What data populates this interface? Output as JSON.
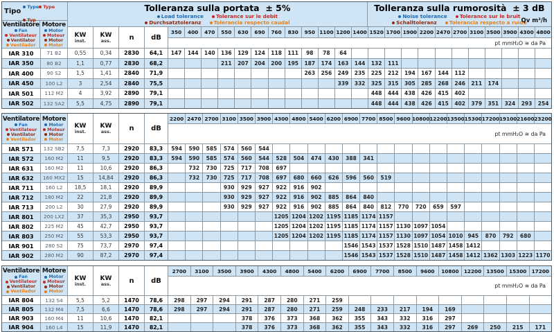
{
  "colors": {
    "blue": "#1e6ab0",
    "red": "#c5291f",
    "maroon": "#8f2a0e",
    "orange": "#e2801e",
    "row_blue": "#cfe5f6"
  },
  "tipo": {
    "label": "Tipo",
    "items": [
      {
        "text": "Type",
        "color": "blue"
      },
      {
        "text": "Type",
        "color": "red"
      },
      {
        "text": "Typ",
        "color": "maroon"
      }
    ]
  },
  "fan_legend": {
    "label": "Ventilatore",
    "items": [
      {
        "text": "Fan",
        "color": "blue"
      },
      {
        "text": "Ventilateur",
        "color": "red"
      },
      {
        "text": "Ventilator",
        "color": "maroon"
      },
      {
        "text": "Ventilador",
        "color": "orange"
      }
    ]
  },
  "motor_legend": {
    "label": "Motore",
    "items": [
      {
        "text": "Motor",
        "color": "blue"
      },
      {
        "text": "Moteur",
        "color": "red"
      },
      {
        "text": "Motor",
        "color": "maroon"
      },
      {
        "text": "Motor",
        "color": "orange"
      }
    ]
  },
  "banner": {
    "portata_title": "Tolleranza sulla portata",
    "portata_tol": "± 5%",
    "portata_legend": [
      [
        {
          "text": "Load tolerance",
          "color": "blue"
        },
        {
          "text": "Tolerance sur le debit",
          "color": "red"
        }
      ],
      [
        {
          "text": "Durchsatztoleranz",
          "color": "maroon"
        },
        {
          "text": "Tolerancia respecto caudal",
          "color": "orange"
        }
      ]
    ],
    "rumorosita_title": "Tolleranza sulla rumorosità",
    "rumorosita_tol": "± 3 dB",
    "rumorosita_legend": [
      [
        {
          "text": "Noise tolerance",
          "color": "blue"
        },
        {
          "text": "Tolerance sur le bruit",
          "color": "red"
        }
      ],
      [
        {
          "text": "Schalltoleranz",
          "color": "maroon"
        },
        {
          "text": "Tolerancia respecto a ruido",
          "color": "orange"
        }
      ]
    ],
    "qv_label": "Qv m³/h"
  },
  "col_labels": {
    "kw": "KW",
    "inst": "inst.",
    "ass": "ass.",
    "n": "n",
    "db": "dB",
    "pt": "pt mmH₂O ≅ da Pa"
  },
  "tables": [
    {
      "flows": [
        "350",
        "400",
        "470",
        "550",
        "630",
        "690",
        "760",
        "830",
        "950",
        "1100",
        "1200",
        "1400",
        "1520",
        "1700",
        "1900",
        "2200",
        "2470",
        "2700",
        "3100",
        "3500",
        "3900",
        "4300",
        "4800"
      ],
      "rows": [
        {
          "name": "IAR 310",
          "motor": "71 B2",
          "kw_inst": "0,55",
          "kw_ass": "0,34",
          "n": "2830",
          "db": "64,1",
          "values": [
            "147",
            "144",
            "140",
            "136",
            "129",
            "124",
            "118",
            "111",
            "98",
            "78",
            "64",
            "",
            "",
            "",
            "",
            "",
            "",
            "",
            "",
            "",
            "",
            "",
            ""
          ]
        },
        {
          "name": "IAR 350",
          "motor": "80 B2",
          "kw_inst": "1,1",
          "kw_ass": "0,77",
          "n": "2830",
          "db": "68,2",
          "values": [
            "",
            "",
            "",
            "211",
            "207",
            "204",
            "200",
            "195",
            "187",
            "174",
            "163",
            "144",
            "132",
            "111",
            "",
            "",
            "",
            "",
            "",
            "",
            "",
            "",
            ""
          ]
        },
        {
          "name": "IAR 400",
          "motor": "90 S2",
          "kw_inst": "1,5",
          "kw_ass": "1,41",
          "n": "2840",
          "db": "71,9",
          "values": [
            "",
            "",
            "",
            "",
            "",
            "",
            "",
            "",
            "263",
            "256",
            "249",
            "235",
            "225",
            "212",
            "194",
            "167",
            "144",
            "112",
            "",
            "",
            "",
            "",
            ""
          ]
        },
        {
          "name": "IAR 450",
          "motor": "100 L2",
          "kw_inst": "3",
          "kw_ass": "2,54",
          "n": "2840",
          "db": "75,5",
          "values": [
            "",
            "",
            "",
            "",
            "",
            "",
            "",
            "",
            "",
            "",
            "339",
            "332",
            "325",
            "315",
            "305",
            "285",
            "268",
            "246",
            "211",
            "174",
            "",
            "",
            ""
          ]
        },
        {
          "name": "IAR 501",
          "motor": "112 M2",
          "kw_inst": "4",
          "kw_ass": "3,92",
          "n": "2890",
          "db": "79,1",
          "values": [
            "",
            "",
            "",
            "",
            "",
            "",
            "",
            "",
            "",
            "",
            "",
            "",
            "448",
            "444",
            "438",
            "426",
            "415",
            "402",
            "",
            "",
            "",
            "",
            ""
          ]
        },
        {
          "name": "IAR 502",
          "motor": "132 SA2",
          "kw_inst": "5,5",
          "kw_ass": "4,75",
          "n": "2890",
          "db": "79,1",
          "values": [
            "",
            "",
            "",
            "",
            "",
            "",
            "",
            "",
            "",
            "",
            "",
            "",
            "448",
            "444",
            "438",
            "426",
            "415",
            "402",
            "379",
            "351",
            "324",
            "293",
            "254"
          ]
        }
      ]
    },
    {
      "flows": [
        "2200",
        "2470",
        "2700",
        "3100",
        "3500",
        "3900",
        "4300",
        "4800",
        "5400",
        "6200",
        "6900",
        "7700",
        "8500",
        "9600",
        "10800",
        "12200",
        "13500",
        "15300",
        "17200",
        "19100",
        "21600",
        "23200"
      ],
      "rows": [
        {
          "name": "IAR 571",
          "motor": "132 SB2",
          "kw_inst": "7,5",
          "kw_ass": "7,3",
          "n": "2920",
          "db": "83,3",
          "values": [
            "594",
            "590",
            "585",
            "574",
            "560",
            "544",
            "",
            "",
            "",
            "",
            "",
            "",
            "",
            "",
            "",
            "",
            "",
            "",
            "",
            "",
            "",
            ""
          ]
        },
        {
          "name": "IAR 572",
          "motor": "160 M2",
          "kw_inst": "11",
          "kw_ass": "9,5",
          "n": "2920",
          "db": "83,3",
          "values": [
            "594",
            "590",
            "585",
            "574",
            "560",
            "544",
            "528",
            "504",
            "474",
            "430",
            "388",
            "341",
            "",
            "",
            "",
            "",
            "",
            "",
            "",
            "",
            "",
            ""
          ]
        },
        {
          "name": "IAR 631",
          "motor": "160 M2",
          "kw_inst": "11",
          "kw_ass": "10,6",
          "n": "2920",
          "db": "86,3",
          "values": [
            "",
            "732",
            "730",
            "725",
            "717",
            "708",
            "697",
            "",
            "",
            "",
            "",
            "",
            "",
            "",
            "",
            "",
            "",
            "",
            "",
            "",
            "",
            ""
          ]
        },
        {
          "name": "IAR 632",
          "motor": "160 MX2",
          "kw_inst": "15",
          "kw_ass": "14,84",
          "n": "2920",
          "db": "86,3",
          "values": [
            "",
            "732",
            "730",
            "725",
            "717",
            "708",
            "697",
            "680",
            "660",
            "626",
            "596",
            "560",
            "519",
            "",
            "",
            "",
            "",
            "",
            "",
            "",
            "",
            ""
          ]
        },
        {
          "name": "IAR 711",
          "motor": "160 L2",
          "kw_inst": "18,5",
          "kw_ass": "18,1",
          "n": "2920",
          "db": "89,9",
          "values": [
            "",
            "",
            "",
            "930",
            "929",
            "927",
            "922",
            "916",
            "902",
            "",
            "",
            "",
            "",
            "",
            "",
            "",
            "",
            "",
            "",
            "",
            "",
            ""
          ]
        },
        {
          "name": "IAR 712",
          "motor": "180 M2",
          "kw_inst": "22",
          "kw_ass": "21,8",
          "n": "2920",
          "db": "89,9",
          "values": [
            "",
            "",
            "",
            "930",
            "929",
            "927",
            "922",
            "916",
            "902",
            "885",
            "864",
            "840",
            "",
            "",
            "",
            "",
            "",
            "",
            "",
            "",
            "",
            ""
          ]
        },
        {
          "name": "IAR 713",
          "motor": "200 L2",
          "kw_inst": "30",
          "kw_ass": "27,9",
          "n": "2920",
          "db": "89,9",
          "values": [
            "",
            "",
            "",
            "930",
            "929",
            "927",
            "922",
            "916",
            "902",
            "885",
            "864",
            "840",
            "812",
            "770",
            "720",
            "659",
            "597",
            "",
            "",
            "",
            "",
            ""
          ]
        },
        {
          "name": "IAR 801",
          "motor": "200 LX2",
          "kw_inst": "37",
          "kw_ass": "35,3",
          "n": "2950",
          "db": "93,7",
          "values": [
            "",
            "",
            "",
            "",
            "",
            "",
            "1205",
            "1204",
            "1202",
            "1195",
            "1185",
            "1174",
            "1157",
            "",
            "",
            "",
            "",
            "",
            "",
            "",
            "",
            ""
          ]
        },
        {
          "name": "IAR 802",
          "motor": "225 M2",
          "kw_inst": "45",
          "kw_ass": "42,7",
          "n": "2950",
          "db": "93,7",
          "values": [
            "",
            "",
            "",
            "",
            "",
            "",
            "1205",
            "1204",
            "1202",
            "1195",
            "1185",
            "1174",
            "1157",
            "1130",
            "1097",
            "1054",
            "",
            "",
            "",
            "",
            "",
            ""
          ]
        },
        {
          "name": "IAR 803",
          "motor": "250 M2",
          "kw_inst": "55",
          "kw_ass": "53,3",
          "n": "2950",
          "db": "93,7",
          "values": [
            "",
            "",
            "",
            "",
            "",
            "",
            "1205",
            "1204",
            "1202",
            "1195",
            "1185",
            "1174",
            "1157",
            "1130",
            "1097",
            "1054",
            "1010",
            "945",
            "870",
            "792",
            "680",
            ""
          ]
        },
        {
          "name": "IAR 901",
          "motor": "280 S2",
          "kw_inst": "75",
          "kw_ass": "73,7",
          "n": "2970",
          "db": "97,4",
          "values": [
            "",
            "",
            "",
            "",
            "",
            "",
            "",
            "",
            "",
            "",
            "1546",
            "1543",
            "1537",
            "1528",
            "1510",
            "1487",
            "1458",
            "1412",
            "",
            "",
            "",
            ""
          ]
        },
        {
          "name": "IAR 902",
          "motor": "280 M2",
          "kw_inst": "90",
          "kw_ass": "87,2",
          "n": "2970",
          "db": "97,4",
          "values": [
            "",
            "",
            "",
            "",
            "",
            "",
            "",
            "",
            "",
            "",
            "1546",
            "1543",
            "1537",
            "1528",
            "1510",
            "1487",
            "1458",
            "1412",
            "1362",
            "1303",
            "1223",
            "1170"
          ]
        }
      ]
    },
    {
      "flows": [
        "2700",
        "3100",
        "3500",
        "3900",
        "4300",
        "4800",
        "5400",
        "6200",
        "6900",
        "7700",
        "8500",
        "9600",
        "10800",
        "12200",
        "13500",
        "15300",
        "17200"
      ],
      "rows": [
        {
          "name": "IAR 804",
          "motor": "132 S4",
          "kw_inst": "5,5",
          "kw_ass": "5,2",
          "n": "1470",
          "db": "78,6",
          "values": [
            "298",
            "297",
            "294",
            "291",
            "287",
            "280",
            "271",
            "259",
            "",
            "",
            "",
            "",
            "",
            "",
            "",
            "",
            ""
          ]
        },
        {
          "name": "IAR 805",
          "motor": "132 M4",
          "kw_inst": "7,5",
          "kw_ass": "6,6",
          "n": "1470",
          "db": "78,6",
          "values": [
            "298",
            "297",
            "294",
            "291",
            "287",
            "280",
            "271",
            "259",
            "248",
            "233",
            "217",
            "194",
            "169",
            "",
            "",
            "",
            ""
          ]
        },
        {
          "name": "IAR 903",
          "motor": "160 M4",
          "kw_inst": "11",
          "kw_ass": "10,6",
          "n": "1470",
          "db": "82,1",
          "values": [
            "",
            "",
            "",
            "378",
            "376",
            "373",
            "368",
            "362",
            "355",
            "343",
            "332",
            "316",
            "297",
            "",
            "",
            "",
            ""
          ]
        },
        {
          "name": "IAR 904",
          "motor": "160 L4",
          "kw_inst": "15",
          "kw_ass": "11,9",
          "n": "1470",
          "db": "82,1",
          "values": [
            "",
            "",
            "",
            "378",
            "376",
            "373",
            "368",
            "362",
            "355",
            "343",
            "332",
            "316",
            "297",
            "269",
            "250",
            "215",
            "171"
          ]
        }
      ]
    }
  ]
}
